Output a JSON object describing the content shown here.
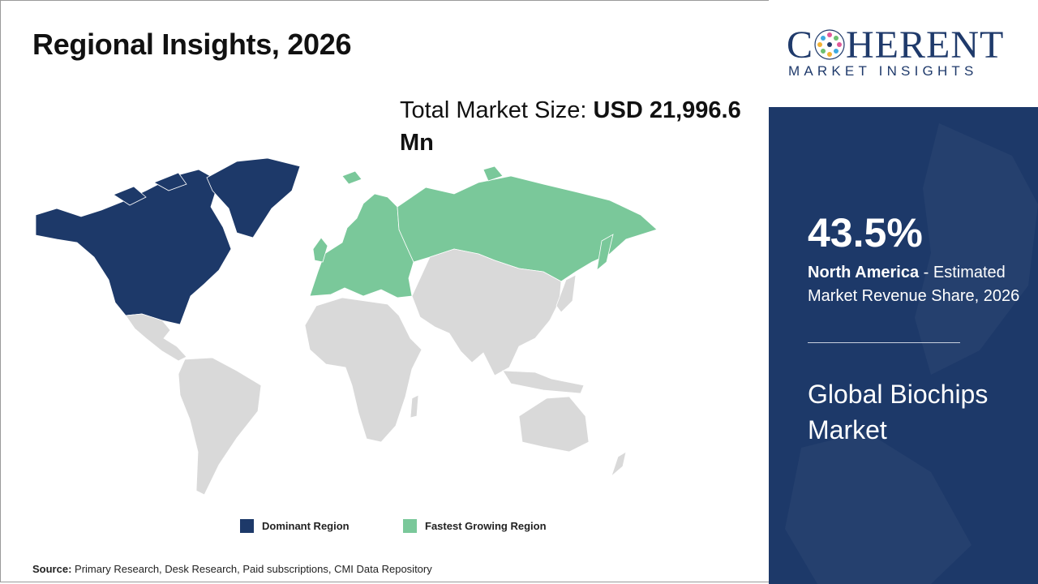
{
  "header": {
    "title": "Regional Insights, 2026"
  },
  "market_size": {
    "label": "Total Market Size:",
    "value": "USD 21,996.6 Mn"
  },
  "map": {
    "regions": {
      "north_america": {
        "status": "dominant"
      },
      "europe": {
        "status": "fastest-growing"
      },
      "russia": {
        "status": "fastest-growing"
      },
      "rest_of_world": {
        "status": "other"
      }
    }
  },
  "legend": {
    "dominant": {
      "label": "Dominant Region",
      "color": "#1d3969"
    },
    "fastest": {
      "label": "Fastest Growing Region",
      "color": "#7ac89a"
    },
    "other_color": "#d9d9d9"
  },
  "source": {
    "label": "Source:",
    "text": "Primary Research, Desk Research, Paid subscriptions, CMI Data Repository"
  },
  "logo": {
    "main_before": "C",
    "main_after": "HERENT",
    "sub": "MARKET INSIGHTS"
  },
  "panel": {
    "share_value": "43.5%",
    "region": "North America",
    "description": " - Estimated Market Revenue Share, 2026",
    "market_name": "Global Biochips Market",
    "background_color": "#1d3969"
  }
}
